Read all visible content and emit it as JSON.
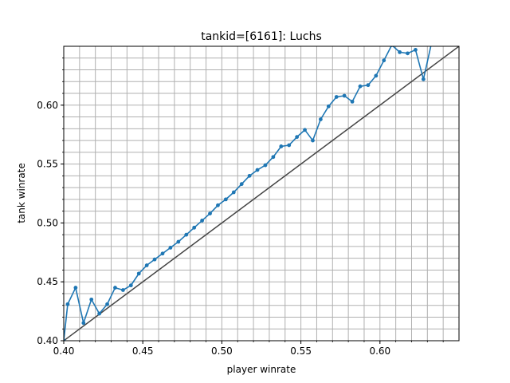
{
  "colors": {
    "series": "#1f77b4",
    "reference": "#444444",
    "grid": "#b0b0b0",
    "axes": "#000000"
  },
  "chart_data": {
    "type": "line",
    "title": "tankid=[6161]: Luchs",
    "xlabel": "player winrate",
    "ylabel": "tank winrate",
    "xlim": [
      0.4,
      0.65
    ],
    "ylim": [
      0.4,
      0.65
    ],
    "grid": true,
    "grid_step": 0.01,
    "xticks": [
      0.4,
      0.45,
      0.5,
      0.55,
      0.6
    ],
    "xtick_labels": [
      "0.40",
      "0.45",
      "0.50",
      "0.55",
      "0.60"
    ],
    "yticks": [
      0.4,
      0.45,
      0.5,
      0.55,
      0.6
    ],
    "ytick_labels": [
      "0.40",
      "0.45",
      "0.50",
      "0.55",
      "0.60"
    ],
    "reference_line": {
      "x": [
        0.4,
        0.65
      ],
      "y": [
        0.4,
        0.65
      ]
    },
    "series": [
      {
        "x": [
          0.4,
          0.4025,
          0.4075,
          0.4125,
          0.4175,
          0.4225,
          0.4275,
          0.4325,
          0.4375,
          0.4425,
          0.4475,
          0.4525,
          0.4575,
          0.4625,
          0.4675,
          0.4725,
          0.4775,
          0.4825,
          0.4875,
          0.4925,
          0.4975,
          0.5025,
          0.5075,
          0.5125,
          0.5175,
          0.5225,
          0.5275,
          0.5325,
          0.5375,
          0.5425,
          0.5475,
          0.5525,
          0.5575,
          0.5625,
          0.5675,
          0.5725,
          0.5775,
          0.5825,
          0.5875,
          0.5925,
          0.5975,
          0.6025,
          0.6075,
          0.6125,
          0.6175,
          0.6225,
          0.6275,
          0.6325
        ],
        "y": [
          0.4,
          0.431,
          0.445,
          0.415,
          0.435,
          0.423,
          0.431,
          0.445,
          0.443,
          0.447,
          0.457,
          0.464,
          0.469,
          0.474,
          0.479,
          0.484,
          0.49,
          0.496,
          0.502,
          0.508,
          0.515,
          0.52,
          0.526,
          0.533,
          0.54,
          0.545,
          0.549,
          0.556,
          0.565,
          0.566,
          0.573,
          0.579,
          0.57,
          0.588,
          0.599,
          0.607,
          0.608,
          0.603,
          0.616,
          0.617,
          0.625,
          0.638,
          0.651,
          0.645,
          0.644,
          0.647,
          0.622,
          0.652
        ]
      }
    ]
  }
}
